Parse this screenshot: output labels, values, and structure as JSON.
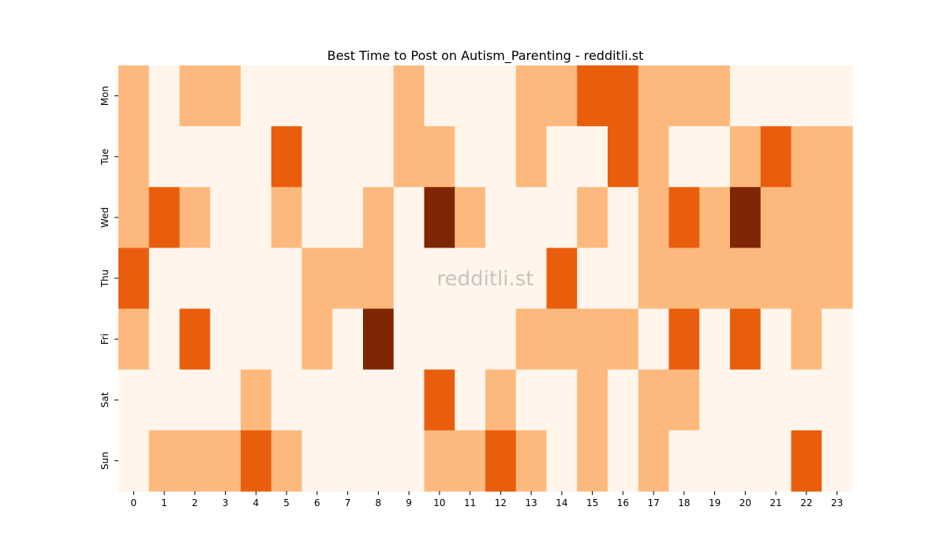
{
  "chart_data": {
    "type": "heatmap",
    "title": "Best Time to Post on Autism_Parenting - redditli.st",
    "watermark": "redditli.st",
    "xlabel": "",
    "ylabel": "",
    "x_tick_labels": [
      "0",
      "1",
      "2",
      "3",
      "4",
      "5",
      "6",
      "7",
      "8",
      "9",
      "10",
      "11",
      "12",
      "13",
      "14",
      "15",
      "16",
      "17",
      "18",
      "19",
      "20",
      "21",
      "22",
      "23"
    ],
    "y_tick_labels": [
      "Mon",
      "Tue",
      "Wed",
      "Thu",
      "Fri",
      "Sat",
      "Sun"
    ],
    "colorscale": {
      "name": "Oranges",
      "levels": [
        "#fff5eb",
        "#fdb97d",
        "#e95e0d",
        "#7f2704"
      ]
    },
    "values": [
      [
        1,
        0,
        1,
        1,
        0,
        0,
        0,
        0,
        0,
        1,
        0,
        0,
        0,
        1,
        1,
        2,
        2,
        1,
        1,
        1,
        0,
        0,
        0,
        0
      ],
      [
        1,
        0,
        0,
        0,
        0,
        2,
        0,
        0,
        0,
        1,
        1,
        0,
        0,
        1,
        0,
        0,
        2,
        1,
        0,
        0,
        1,
        2,
        1,
        1
      ],
      [
        1,
        2,
        1,
        0,
        0,
        1,
        0,
        0,
        1,
        0,
        3,
        1,
        0,
        0,
        0,
        1,
        0,
        1,
        2,
        1,
        3,
        1,
        1,
        1
      ],
      [
        2,
        0,
        0,
        0,
        0,
        0,
        1,
        1,
        1,
        0,
        0,
        0,
        0,
        0,
        2,
        0,
        0,
        1,
        1,
        1,
        1,
        1,
        1,
        1
      ],
      [
        1,
        0,
        2,
        0,
        0,
        0,
        1,
        0,
        3,
        0,
        0,
        0,
        0,
        1,
        1,
        1,
        1,
        0,
        2,
        0,
        2,
        0,
        1,
        0
      ],
      [
        0,
        0,
        0,
        0,
        1,
        0,
        0,
        0,
        0,
        0,
        2,
        0,
        1,
        0,
        0,
        1,
        0,
        1,
        1,
        0,
        0,
        0,
        0,
        0
      ],
      [
        0,
        1,
        1,
        1,
        2,
        1,
        0,
        0,
        0,
        0,
        1,
        1,
        2,
        1,
        0,
        1,
        0,
        1,
        0,
        0,
        0,
        0,
        2,
        0
      ]
    ]
  }
}
